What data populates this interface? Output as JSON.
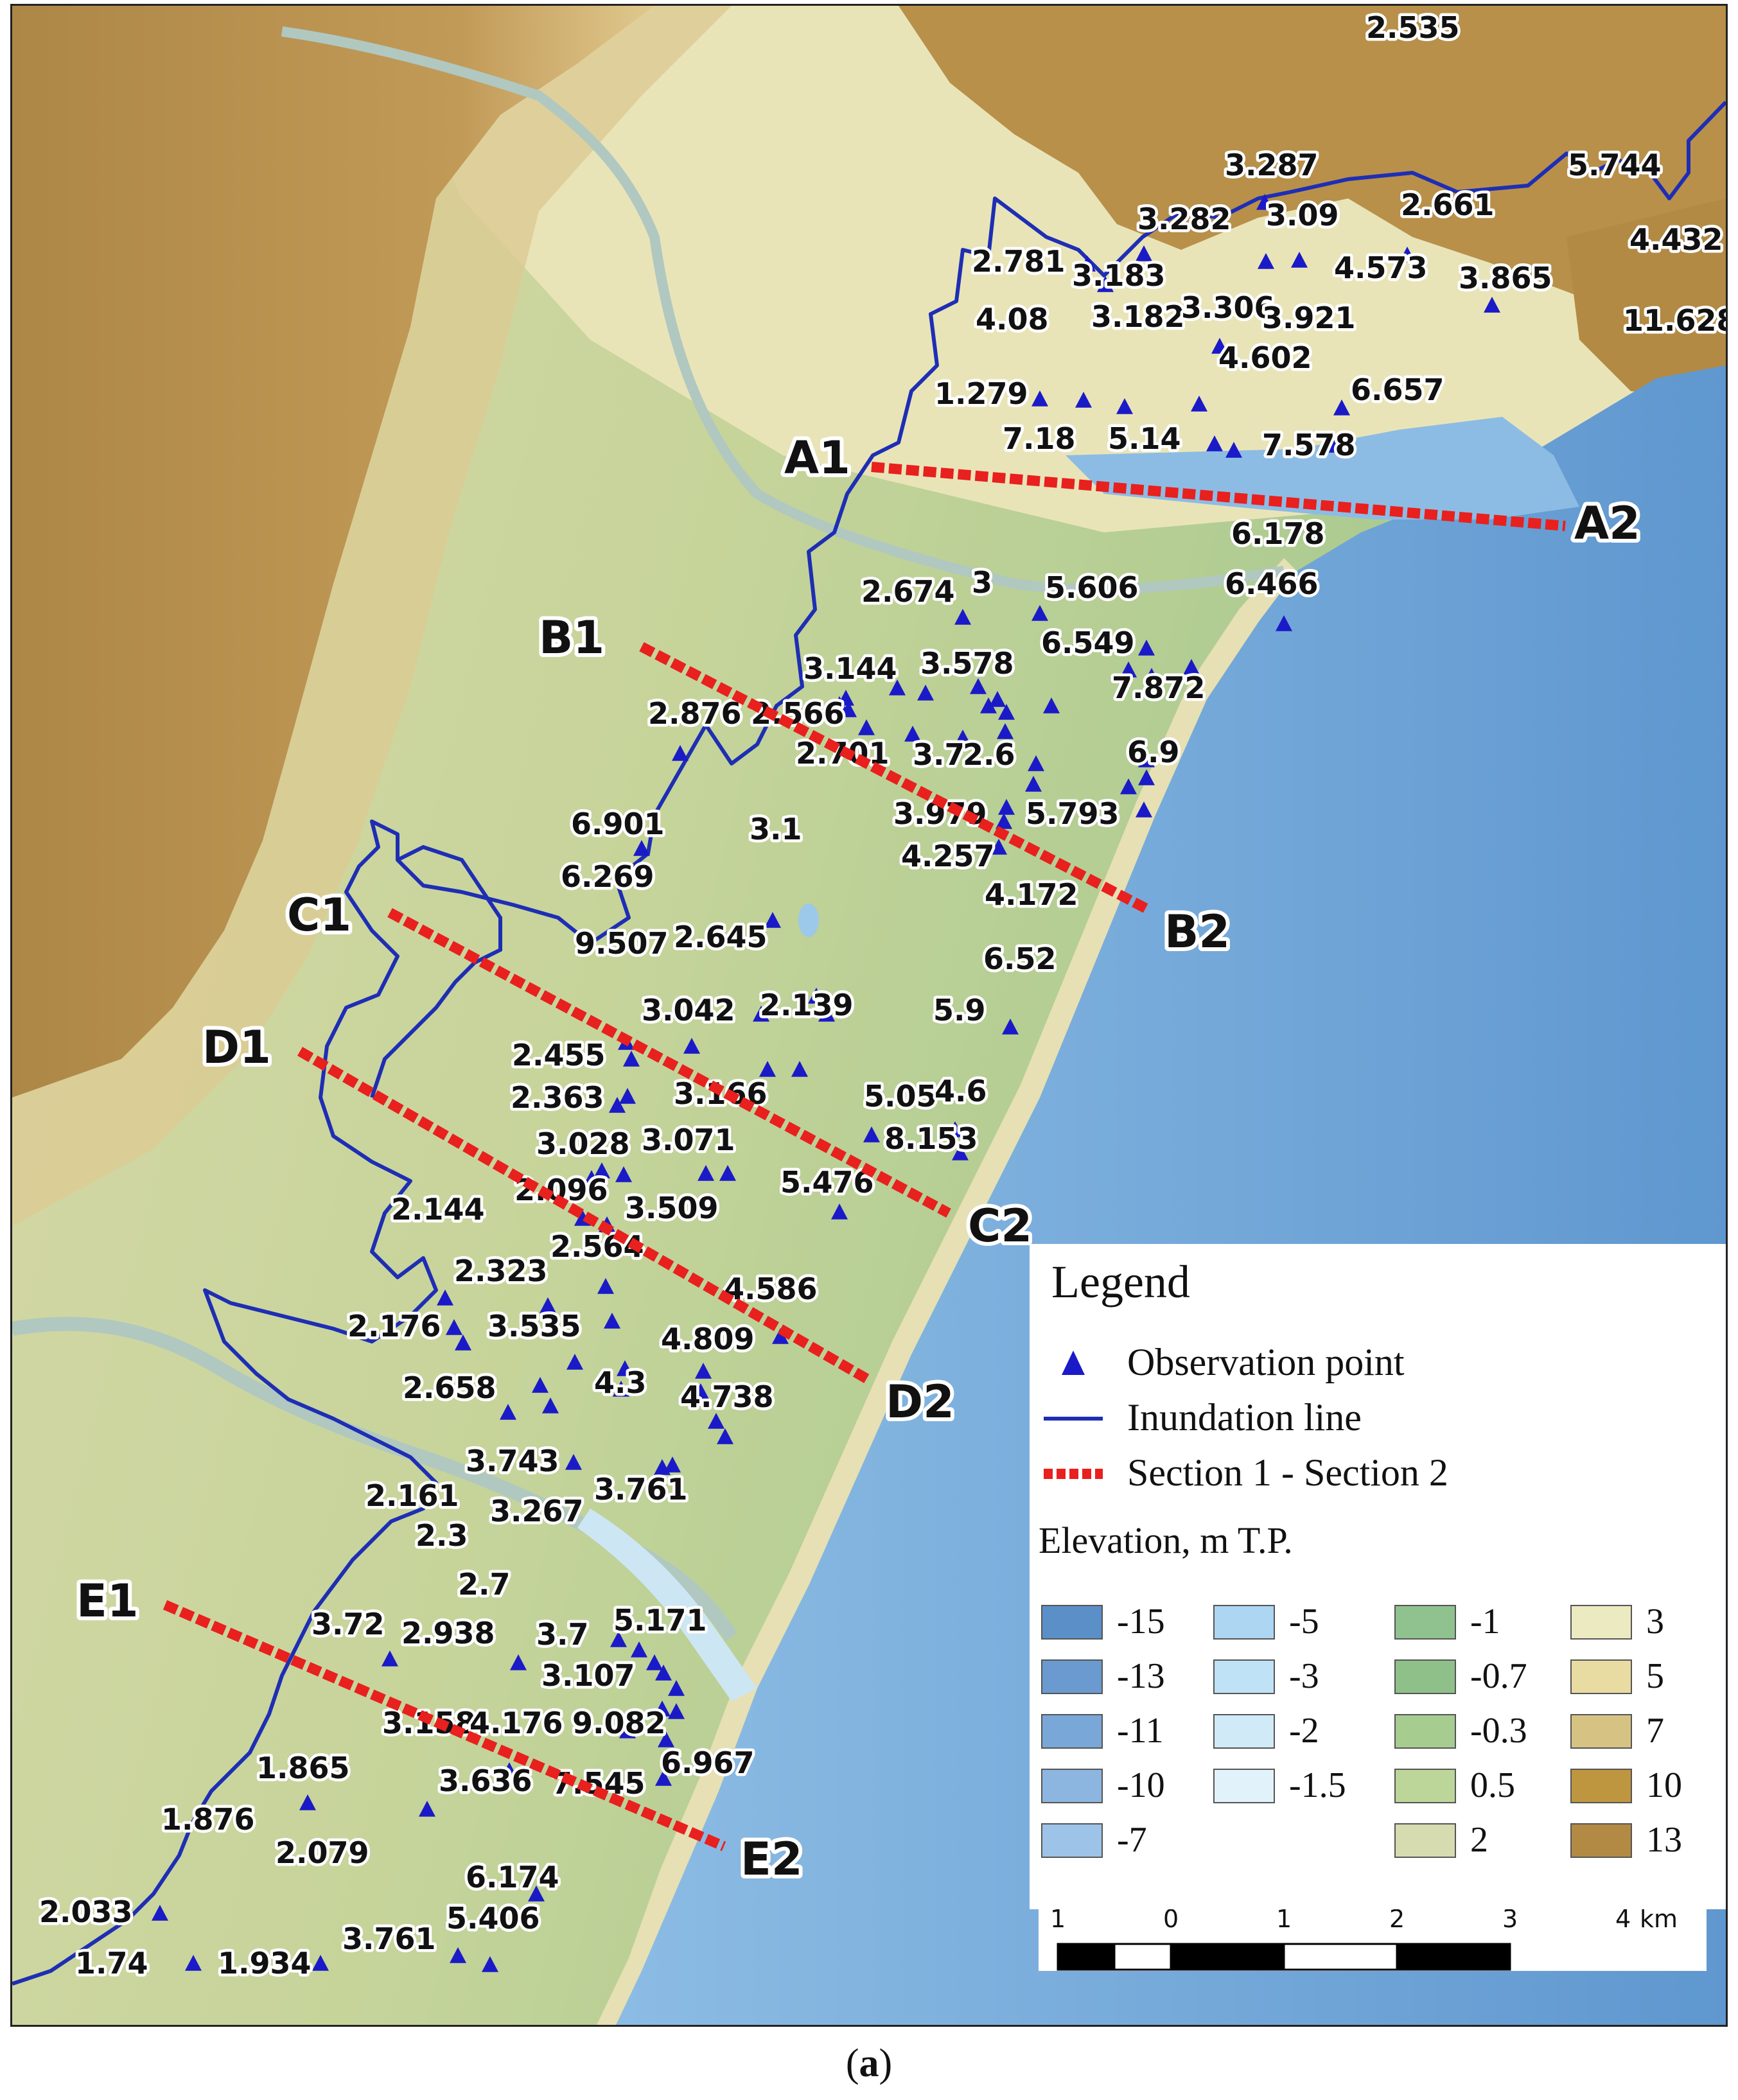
{
  "caption": {
    "open": "(",
    "letter": "a",
    "close": ")"
  },
  "legend": {
    "title": "Legend",
    "items": [
      {
        "symbol": "triangle",
        "label": "Observation point",
        "color": "#1a1ac8"
      },
      {
        "symbol": "line",
        "label": "Inundation line",
        "color": "#1e2eb4"
      },
      {
        "symbol": "dashed-line",
        "label": "Section 1 - Section 2",
        "color": "#e8201e"
      }
    ],
    "elevation_title": "Elevation, m T.P.",
    "elevation_classes": [
      {
        "label": "-15",
        "color": "#5b8fc8"
      },
      {
        "label": "-13",
        "color": "#6a9ad0"
      },
      {
        "label": "-11",
        "color": "#79a7d8"
      },
      {
        "label": "-10",
        "color": "#8cb6e0"
      },
      {
        "label": "-7",
        "color": "#9dc4e8"
      },
      {
        "label": "-5",
        "color": "#acd6f2"
      },
      {
        "label": "-3",
        "color": "#bfe2f6"
      },
      {
        "label": "-2",
        "color": "#d0eaf8"
      },
      {
        "label": "-1.5",
        "color": "#e2f2fa"
      },
      {
        "label": "-1",
        "color": "#8fc28f"
      },
      {
        "label": "-0.7",
        "color": "#8fc08a"
      },
      {
        "label": "-0.3",
        "color": "#a6cc90"
      },
      {
        "label": "0.5",
        "color": "#bcd69a"
      },
      {
        "label": "2",
        "color": "#d6dcb0"
      },
      {
        "label": "3",
        "color": "#eceac0"
      },
      {
        "label": "5",
        "color": "#e8dca2"
      },
      {
        "label": "7",
        "color": "#d6c384"
      },
      {
        "label": "10",
        "color": "#bf9640"
      },
      {
        "label": "13",
        "color": "#b38a44"
      }
    ]
  },
  "scale": {
    "ticks": [
      "1",
      "0",
      "1",
      "2",
      "3",
      "4"
    ],
    "unit": "km"
  },
  "sections": [
    {
      "start": "A1",
      "end": "A2"
    },
    {
      "start": "B1",
      "end": "B2"
    },
    {
      "start": "C1",
      "end": "C2"
    },
    {
      "start": "D1",
      "end": "D2"
    },
    {
      "start": "E1",
      "end": "E2"
    }
  ],
  "observation_values": [
    "2.535",
    "3.287",
    "5.744",
    "3.282",
    "3.09",
    "2.661",
    "4.432",
    "2.781",
    "3.183",
    "4.573",
    "3.865",
    "4.08",
    "3.182",
    "3.306",
    "3.921",
    "11.628",
    "4.602",
    "1.279",
    "6.657",
    "7.18",
    "5.14",
    "7.578",
    "6.178",
    "6.466",
    "2.674",
    "3",
    "5.606",
    "6.549",
    "3.144",
    "3.578",
    "7.872",
    "2.876",
    "2.566",
    "2.701",
    "3.7",
    "2.6",
    "6.9",
    "3.979",
    "5.793",
    "6.901",
    "3.1",
    "4.257",
    "6.269",
    "4.172",
    "9.507",
    "2.645",
    "6.52",
    "3.042",
    "2.139",
    "5.9",
    "2.455",
    "3.166",
    "5.05",
    "4.6",
    "2.363",
    "8.153",
    "3.028",
    "3.071",
    "2.096",
    "5.476",
    "3.509",
    "2.144",
    "2.564",
    "4.586",
    "2.323",
    "2.176",
    "3.535",
    "4.809",
    "4.3",
    "2.658",
    "4.738",
    "3.743",
    "3.761",
    "2.161",
    "3.267",
    "2.3",
    "2.7",
    "5.171",
    "3.72",
    "2.938",
    "3.7",
    "3.107",
    "3.158",
    "4.176",
    "9.082",
    "1.865",
    "6.967",
    "3.636",
    "7.545",
    "1.876",
    "2.079",
    "6.174",
    "2.033",
    "5.406",
    "3.761",
    "1.74",
    "1.934"
  ],
  "colors": {
    "sea": "#75a8d6",
    "upland": "#b38d4e",
    "plain": "#c9d69a",
    "inundation": "#1e2eb4",
    "section": "#e8201e",
    "triangle": "#1a1ac8"
  }
}
